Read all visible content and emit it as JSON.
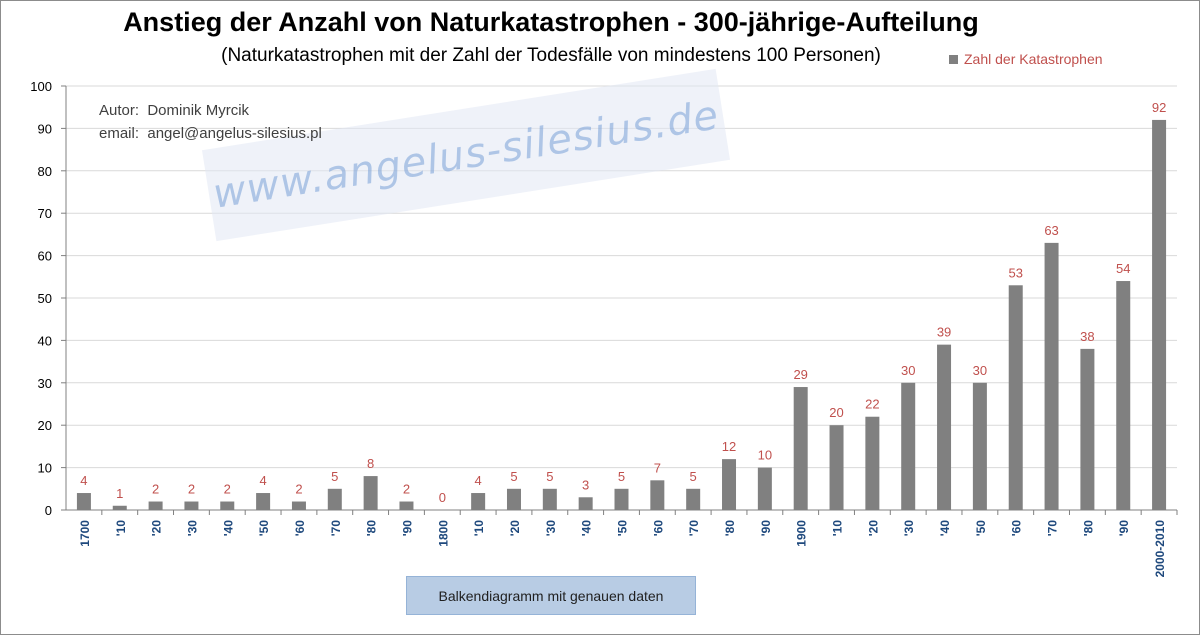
{
  "chart_data": {
    "type": "bar",
    "title": "Anstieg der Anzahl von Naturkatastrophen - 300-jährige-Aufteilung",
    "subtitle": "(Naturkatastrophen mit der Zahl der Todesfälle von mindestens 100 Personen)",
    "categories": [
      "1700",
      "'10",
      "'20",
      "'30",
      "'40",
      "'50",
      "'60",
      "'70",
      "'80",
      "'90",
      "1800",
      "'10",
      "'20",
      "'30",
      "'40",
      "'50",
      "'60",
      "'70",
      "'80",
      "'90",
      "1900",
      "'10",
      "'20",
      "'30",
      "'40",
      "'50",
      "'60",
      "'70",
      "'80",
      "'90",
      "2000-2010"
    ],
    "series": [
      {
        "name": "Zahl der Katastrophen",
        "values": [
          4,
          1,
          2,
          2,
          2,
          4,
          2,
          5,
          8,
          2,
          0,
          4,
          5,
          5,
          3,
          5,
          7,
          5,
          12,
          10,
          29,
          20,
          22,
          30,
          39,
          30,
          53,
          63,
          38,
          54,
          92
        ]
      }
    ],
    "y_ticks": [
      "0",
      "10",
      "20",
      "30",
      "40",
      "50",
      "60",
      "70",
      "80",
      "90",
      "100"
    ],
    "ylim": [
      0,
      100
    ],
    "xlabel": "",
    "ylabel": "",
    "grid": "horizontal",
    "legend_position": "top-right",
    "colors": {
      "bar": "#808080",
      "data_label": "#c0504d",
      "category_label": "#1f497d",
      "gridline": "#d9d9d9",
      "axis": "#808080"
    }
  },
  "author": {
    "line1": "Autor:  Dominik Myrcik",
    "line2": "email:  angel@angelus-silesius.pl"
  },
  "watermark": "www.angelus-silesius.de",
  "button": {
    "label": "Balkendiagramm mit genauen daten"
  }
}
